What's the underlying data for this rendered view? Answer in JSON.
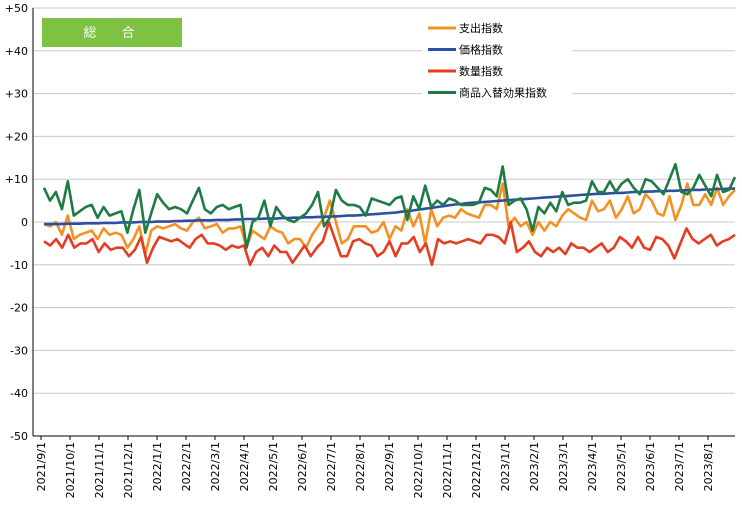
{
  "chart_data": {
    "type": "line",
    "title": "総　合",
    "colors": {
      "badge": "#7dc242",
      "grid": "#c8c8c8",
      "axis": "#000000"
    },
    "ylim": [
      -50,
      50
    ],
    "yticks": [
      "-50",
      "-40",
      "-30",
      "-20",
      "-10",
      "0",
      "+10",
      "+20",
      "+30",
      "+40",
      "+50"
    ],
    "ytick_values": [
      -50,
      -40,
      -30,
      -20,
      -10,
      0,
      10,
      20,
      30,
      40,
      50
    ],
    "xlabels": [
      "2021/9/1",
      "2021/10/1",
      "2021/11/1",
      "2021/12/1",
      "2022/1/1",
      "2022/2/1",
      "2022/3/1",
      "2022/4/1",
      "2022/5/1",
      "2022/6/1",
      "2022/7/1",
      "2022/8/1",
      "2022/9/1",
      "2022/10/1",
      "2022/11/1",
      "2022/12/1",
      "2023/1/1",
      "2023/2/1",
      "2023/3/1",
      "2023/4/1",
      "2023/5/1",
      "2023/6/1",
      "2023/7/1",
      "2023/8/1"
    ],
    "legend_position": "top-right",
    "series": [
      {
        "name": "支出指数",
        "color": "#f39123",
        "values": [
          -0.5,
          -1,
          0,
          -3,
          1.5,
          -4,
          -3,
          -2.5,
          -2,
          -4,
          -1.5,
          -3,
          -2.5,
          -3,
          -6,
          -4,
          -1,
          -7.5,
          -2,
          -1,
          -1.5,
          -1,
          -0.5,
          -1.5,
          -2,
          0,
          1,
          -1.5,
          -1,
          -0.5,
          -2.5,
          -1.5,
          -1.5,
          -1,
          -6,
          -2,
          -3,
          -4,
          -1,
          -2,
          -2.5,
          -5,
          -4,
          -4,
          -6,
          -3,
          -1,
          1,
          5,
          0,
          -5,
          -4,
          -1,
          -1,
          -1,
          -2.5,
          -2,
          0,
          -4,
          -1,
          -2,
          3,
          -1,
          2,
          -5,
          3,
          -1,
          1,
          1.5,
          1,
          3,
          2,
          1.5,
          1,
          4,
          4,
          3,
          9,
          -1,
          1,
          -1,
          0,
          -3,
          0,
          -2,
          0,
          -1,
          1.5,
          3,
          2,
          1,
          0.5,
          5,
          2.5,
          3,
          5,
          1,
          3,
          6,
          2,
          3,
          6.5,
          5,
          2,
          1.5,
          6,
          0.5,
          4,
          9,
          4,
          4,
          6.5,
          4,
          8,
          4,
          6,
          7.5
        ]
      },
      {
        "name": "価格指数",
        "color": "#2a4fa3",
        "values": [
          -0.5,
          -0.5,
          -0.5,
          -0.5,
          -0.4,
          -0.4,
          -0.4,
          -0.3,
          -0.3,
          -0.3,
          -0.2,
          -0.2,
          -0.2,
          -0.1,
          -0.1,
          -0.1,
          0,
          0,
          0,
          0.1,
          0.1,
          0.1,
          0.2,
          0.2,
          0.3,
          0.3,
          0.4,
          0.4,
          0.4,
          0.5,
          0.5,
          0.5,
          0.6,
          0.6,
          0.7,
          0.7,
          0.7,
          0.8,
          0.8,
          0.8,
          0.9,
          0.9,
          1.0,
          1.0,
          1.1,
          1.1,
          1.2,
          1.2,
          1.3,
          1.3,
          1.4,
          1.5,
          1.5,
          1.6,
          1.7,
          1.8,
          1.9,
          2.0,
          2.1,
          2.2,
          2.4,
          2.5,
          2.7,
          2.9,
          3.1,
          3.3,
          3.5,
          3.7,
          3.9,
          4.1,
          4.2,
          4.4,
          4.5,
          4.6,
          4.7,
          4.8,
          4.9,
          5.0,
          5.1,
          5.2,
          5.3,
          5.4,
          5.5,
          5.6,
          5.7,
          5.8,
          5.9,
          6.0,
          6.1,
          6.2,
          6.3,
          6.4,
          6.5,
          6.6,
          6.6,
          6.7,
          6.8,
          6.8,
          6.9,
          7.0,
          7.0,
          7.1,
          7.1,
          7.2,
          7.2,
          7.3,
          7.3,
          7.4,
          7.4,
          7.5,
          7.5,
          7.6,
          7.6,
          7.7,
          7.7,
          7.8,
          7.8
        ]
      },
      {
        "name": "数量指数",
        "color": "#e53d22",
        "values": [
          -4.5,
          -5.5,
          -4,
          -6,
          -3,
          -6,
          -5,
          -5,
          -4,
          -7,
          -5,
          -6.5,
          -6,
          -6,
          -8,
          -6.5,
          -3.5,
          -9.5,
          -6,
          -3.5,
          -4,
          -4.5,
          -4,
          -5,
          -6,
          -4,
          -3,
          -5,
          -5,
          -5.5,
          -6.5,
          -5.5,
          -6,
          -5.5,
          -10,
          -7,
          -6,
          -8,
          -5.5,
          -7,
          -7,
          -9.5,
          -7.5,
          -5.5,
          -8,
          -6,
          -4.5,
          0,
          -4,
          -8,
          -8,
          -4.5,
          -4,
          -5,
          -5.5,
          -8,
          -7,
          -4.5,
          -8,
          -5,
          -5,
          -3.5,
          -7,
          -5,
          -10,
          -4,
          -5,
          -4.5,
          -5,
          -4.5,
          -4,
          -4.5,
          -5,
          -3,
          -3,
          -3.5,
          -5,
          0,
          -7,
          -6,
          -4.5,
          -7,
          -8,
          -6,
          -7,
          -6,
          -7.5,
          -5,
          -6,
          -6,
          -7,
          -6,
          -5,
          -7,
          -6,
          -3.5,
          -4.5,
          -6,
          -3.5,
          -6,
          -6.5,
          -3.5,
          -4,
          -5.5,
          -8.5,
          -5,
          -1.5,
          -4,
          -5,
          -4,
          -3,
          -5.5,
          -4.5,
          -4,
          -3
        ]
      },
      {
        "name": "商品入替効果指数",
        "color": "#1e7b45",
        "values": [
          8,
          5,
          7,
          3,
          9.5,
          1.5,
          2.5,
          3.5,
          4,
          1,
          3.5,
          1.5,
          2,
          2.5,
          -2.5,
          3,
          7.5,
          -2.5,
          2,
          6.5,
          4.5,
          3,
          3.5,
          3,
          2,
          5,
          8,
          3,
          2,
          3.5,
          4,
          3,
          3.5,
          4,
          -6,
          0,
          1,
          5,
          -1,
          3.5,
          1.5,
          0.5,
          0,
          1,
          2,
          4,
          7,
          -1,
          1,
          7.5,
          5,
          4,
          4,
          3.5,
          1.5,
          5.5,
          5,
          4.5,
          4,
          5.5,
          6,
          0.5,
          6,
          3,
          8.5,
          3.5,
          5,
          4,
          5.5,
          5,
          4,
          4,
          4,
          4.5,
          8,
          7.5,
          6,
          13,
          4,
          5,
          5.5,
          3,
          -2,
          3.5,
          2,
          4.5,
          2.5,
          7,
          4,
          4.5,
          4.5,
          5,
          9.5,
          7,
          7,
          9.5,
          7,
          9,
          10,
          8,
          6.5,
          10,
          9.5,
          8,
          6.5,
          10,
          13.5,
          7,
          6.5,
          8,
          11,
          8.5,
          6,
          11,
          7,
          7.5,
          10.5
        ]
      }
    ]
  }
}
